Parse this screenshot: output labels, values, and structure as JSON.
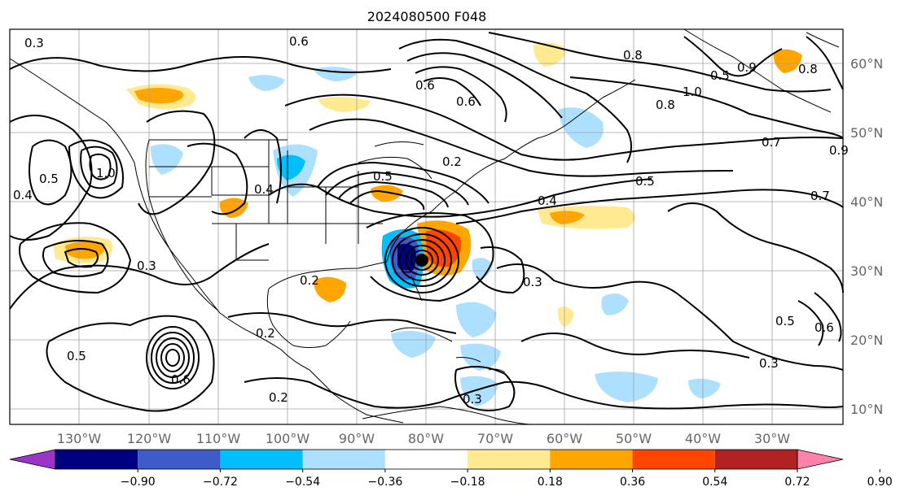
{
  "title": "2024080500 F048",
  "longitude_labels": [
    "130°W",
    "120°W",
    "110°W",
    "100°W",
    "90°W",
    "80°W",
    "70°W",
    "60°W",
    "50°W",
    "40°W",
    "30°W"
  ],
  "latitude_labels": [
    "60°N",
    "50°N",
    "40°N",
    "30°N",
    "20°N",
    "10°N"
  ],
  "colorbar": {
    "tick_labels": [
      "−0.90",
      "−0.72",
      "−0.54",
      "−0.36",
      "−0.18",
      "0.18",
      "0.36",
      "0.54",
      "0.72",
      "0.90"
    ],
    "colors": [
      "#9a35c8",
      "#000080",
      "#3d5bc9",
      "#00bfff",
      "#ade0ff",
      "#ffffff",
      "#ffe991",
      "#ffa500",
      "#ff4500",
      "#b22222",
      "#ff82ab"
    ]
  },
  "contour_labels": [
    "0.3",
    "0.6",
    "0.8",
    "0.8",
    "0.5",
    "0.9",
    "1.0",
    "0.8",
    "0.6",
    "0.6",
    "0.2",
    "0.5",
    "0.4",
    "0.5",
    "0.7",
    "0.7",
    "0.9",
    "0.4",
    "0.5",
    "1.0",
    "0.4",
    "0.3",
    "0.2",
    "0.5",
    "0.6",
    "0.2",
    "0.2",
    "0.3",
    "0.3",
    "0.5",
    "0.3",
    "0.6"
  ]
}
